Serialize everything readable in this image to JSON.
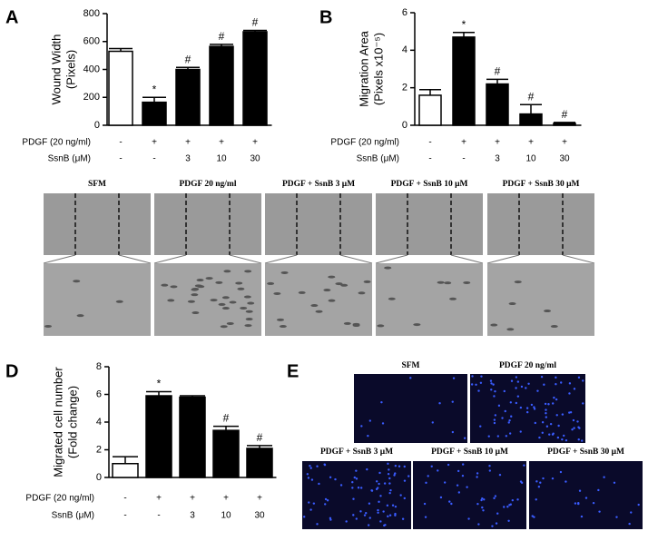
{
  "chart_data": [
    {
      "type": "bar",
      "panel_label": "A",
      "ylabel": [
        "Wound Width",
        "(Pixels)"
      ],
      "values": [
        530,
        165,
        400,
        565,
        670
      ],
      "errors": [
        20,
        35,
        15,
        15,
        10
      ],
      "colors": [
        "#ffffff",
        "#000000",
        "#000000",
        "#000000",
        "#000000"
      ],
      "ylim": [
        0,
        800
      ],
      "yticks": [
        0,
        200,
        400,
        600,
        800
      ],
      "annotations": [
        {
          "index": 1,
          "text": "*"
        },
        {
          "index": 2,
          "text": "#"
        },
        {
          "index": 3,
          "text": "#"
        },
        {
          "index": 4,
          "text": "#"
        }
      ],
      "conditions": [
        {
          "name": "PDGF (20 ng/ml)",
          "values": [
            "-",
            "+",
            "+",
            "+",
            "+"
          ]
        },
        {
          "name": "SsnB (μM)",
          "values": [
            "-",
            "-",
            "3",
            "10",
            "30"
          ]
        }
      ]
    },
    {
      "type": "bar",
      "panel_label": "B",
      "ylabel": [
        "Migration Area",
        "(Pixels x10⁻⁵)"
      ],
      "values": [
        1.6,
        4.7,
        2.2,
        0.6,
        0.1
      ],
      "errors": [
        0.3,
        0.25,
        0.25,
        0.5,
        0.05
      ],
      "colors": [
        "#ffffff",
        "#000000",
        "#000000",
        "#000000",
        "#000000"
      ],
      "ylim": [
        0,
        6
      ],
      "yticks": [
        0,
        2,
        4,
        6
      ],
      "annotations": [
        {
          "index": 1,
          "text": "*"
        },
        {
          "index": 2,
          "text": "#"
        },
        {
          "index": 3,
          "text": "#"
        },
        {
          "index": 4,
          "text": "#"
        }
      ],
      "conditions": [
        {
          "name": "PDGF (20 ng/ml)",
          "values": [
            "-",
            "+",
            "+",
            "+",
            "+"
          ]
        },
        {
          "name": "SsnB (μM)",
          "values": [
            "-",
            "-",
            "3",
            "10",
            "30"
          ]
        }
      ]
    },
    {
      "type": "bar",
      "panel_label": "D",
      "ylabel": [
        "Migrated cell number",
        "(Fold change)"
      ],
      "values": [
        1.0,
        5.9,
        5.8,
        3.4,
        2.1
      ],
      "errors": [
        0.5,
        0.3,
        0.1,
        0.3,
        0.2
      ],
      "colors": [
        "#ffffff",
        "#000000",
        "#000000",
        "#000000",
        "#000000"
      ],
      "ylim": [
        0,
        8
      ],
      "yticks": [
        0,
        2,
        4,
        6,
        8
      ],
      "annotations": [
        {
          "index": 1,
          "text": "*"
        },
        {
          "index": 3,
          "text": "#"
        },
        {
          "index": 4,
          "text": "#"
        }
      ],
      "conditions": [
        {
          "name": "PDGF (20 ng/ml)",
          "values": [
            "-",
            "+",
            "+",
            "+",
            "+"
          ]
        },
        {
          "name": "SsnB (μM)",
          "values": [
            "-",
            "-",
            "3",
            "10",
            "30"
          ]
        }
      ]
    }
  ],
  "image_panels": [
    {
      "titles": [
        "SFM",
        "PDGF 20 ng/ml",
        "PDGF + SsnB 3 μM",
        "PDGF + SsnB 10 μM",
        "PDGF + SsnB 30 μM"
      ]
    },
    {
      "label": "E",
      "titles": [
        "SFM",
        "PDGF 20 ng/ml",
        "PDGF + SsnB 3 μM",
        "PDGF + SsnB 10 μM",
        "PDGF + SsnB 30 μM"
      ]
    }
  ]
}
